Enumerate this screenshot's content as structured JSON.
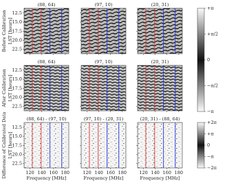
{
  "chart_data": {
    "type": "heatmap-grid",
    "xlim": [
      110,
      186
    ],
    "ylim": [
      11.2,
      23.7
    ],
    "xticks": [
      120,
      140,
      160,
      180
    ],
    "yticks": [
      12.5,
      {
        "value": 15,
        "label": "15.0"
      },
      17.5,
      {
        "value": 20,
        "label": "20.0"
      },
      22.5
    ],
    "xlabel": "Frequency [MHz]",
    "vlines": [
      {
        "value": 124,
        "color": "#e03030"
      },
      {
        "value": 139,
        "color": "#e03030"
      },
      {
        "value": 154,
        "color": "#2030e0"
      },
      {
        "value": 174,
        "color": "#2030e0"
      }
    ],
    "rows": [
      {
        "label": [
          "Before Calibration",
          "LST [hours]"
        ],
        "titles": [
          "(88, 64)",
          "(97, 10)",
          "(20, 31)"
        ]
      },
      {
        "label": [
          "After Calibration",
          "LST [hours]"
        ],
        "titles": [
          "(88, 64)",
          "(97, 10)",
          "(20, 31)"
        ]
      },
      {
        "label": [
          "Difference of Calibrated Data",
          "LST [hours]"
        ],
        "titles": [
          "(88, 64) - (97, 10)",
          "(97, 10) - (20, 31)",
          "(20, 31) - (88, 64)"
        ]
      }
    ],
    "colorbars": [
      {
        "clim": [
          -3.1416,
          3.1416
        ],
        "ticks": [
          {
            "value": 3.1416,
            "label": "+π"
          },
          {
            "value": 1.5708,
            "label": "+π/2"
          },
          0,
          {
            "value": -1.5708,
            "label": "−π/2"
          },
          {
            "value": -3.1416,
            "label": "−π"
          }
        ]
      },
      {
        "clim": [
          -6.2832,
          6.2832
        ],
        "ticks": [
          {
            "value": 6.2832,
            "label": "+2π"
          },
          {
            "value": 3.1416,
            "label": "+π"
          },
          0,
          {
            "value": -3.1416,
            "label": "−π"
          },
          {
            "value": -6.2832,
            "label": "−2π"
          }
        ]
      }
    ]
  }
}
